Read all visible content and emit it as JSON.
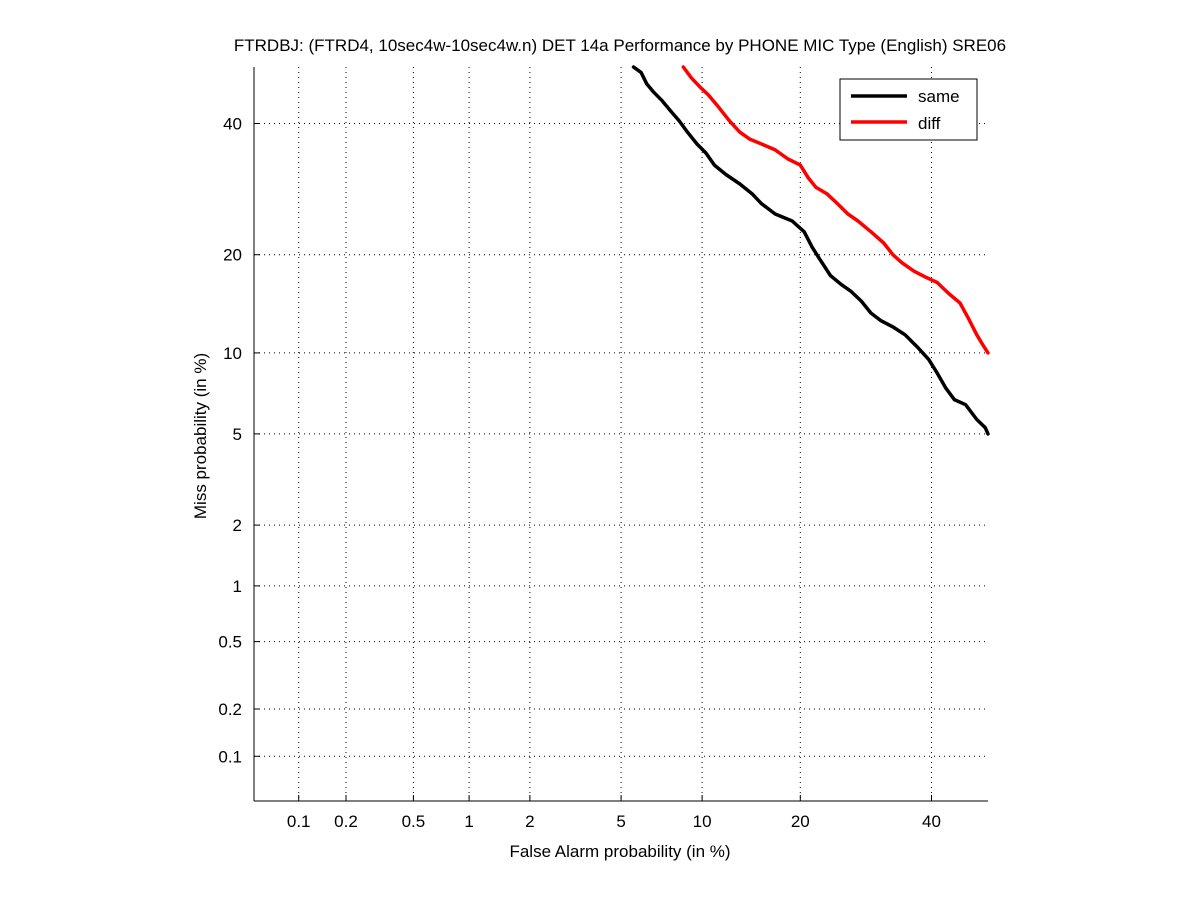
{
  "chart_data": {
    "type": "line",
    "title": "FTRDBJ: (FTRD4, 10sec4w-10sec4w.n) DET 14a Performance by PHONE MIC Type (English) SRE06",
    "xlabel": "False Alarm probability (in %)",
    "ylabel": "Miss probability (in %)",
    "x_scale": "normal-deviate (probit)",
    "y_scale": "normal-deviate (probit)",
    "xlim": [
      0.05,
      50
    ],
    "ylim": [
      0.05,
      50
    ],
    "x_ticks": [
      0.1,
      0.2,
      0.5,
      1,
      2,
      5,
      10,
      20,
      40
    ],
    "x_tick_labels": [
      "0.1",
      "0.2",
      "0.5",
      "1",
      "2",
      "5",
      "10",
      "20",
      "40"
    ],
    "y_ticks": [
      0.1,
      0.2,
      0.5,
      1,
      2,
      5,
      10,
      20,
      40
    ],
    "y_tick_labels": [
      "0.1",
      "0.2",
      "0.5",
      "1",
      "2",
      "5",
      "10",
      "20",
      "40"
    ],
    "grid": true,
    "legend_position": "top-right",
    "series": [
      {
        "name": "same",
        "color": "#000000",
        "points": [
          [
            5.6,
            50
          ],
          [
            6.0,
            49
          ],
          [
            6.3,
            47
          ],
          [
            6.7,
            45.5
          ],
          [
            7.2,
            44
          ],
          [
            7.8,
            42
          ],
          [
            8.3,
            40.5
          ],
          [
            8.9,
            38.5
          ],
          [
            9.6,
            36.5
          ],
          [
            10.3,
            35
          ],
          [
            11.0,
            33
          ],
          [
            12.0,
            31.5
          ],
          [
            13.3,
            30
          ],
          [
            14.5,
            28.5
          ],
          [
            15.5,
            27
          ],
          [
            17.0,
            25.5
          ],
          [
            19.0,
            24.5
          ],
          [
            20.5,
            23
          ],
          [
            21.5,
            21
          ],
          [
            22.5,
            19.5
          ],
          [
            24.0,
            17.5
          ],
          [
            25.5,
            16.5
          ],
          [
            27.0,
            15.7
          ],
          [
            28.5,
            14.7
          ],
          [
            30.0,
            13.5
          ],
          [
            31.5,
            12.8
          ],
          [
            33.5,
            12.2
          ],
          [
            35.5,
            11.5
          ],
          [
            37.5,
            10.5
          ],
          [
            39.5,
            9.5
          ],
          [
            41.0,
            8.5
          ],
          [
            42.5,
            7.5
          ],
          [
            44.0,
            6.8
          ],
          [
            46.0,
            6.5
          ],
          [
            48.0,
            5.7
          ],
          [
            49.5,
            5.3
          ],
          [
            50,
            5.0
          ]
        ]
      },
      {
        "name": "diff",
        "color": "#ff0000",
        "points": [
          [
            8.6,
            50
          ],
          [
            9.2,
            48
          ],
          [
            9.8,
            46.5
          ],
          [
            10.5,
            45
          ],
          [
            11.3,
            43
          ],
          [
            12.3,
            40.5
          ],
          [
            13.3,
            38.5
          ],
          [
            14.3,
            37.3
          ],
          [
            15.5,
            36.5
          ],
          [
            17.0,
            35.5
          ],
          [
            18.5,
            34
          ],
          [
            20.0,
            33
          ],
          [
            21.0,
            31
          ],
          [
            22.0,
            29.5
          ],
          [
            23.5,
            28.5
          ],
          [
            25.0,
            27
          ],
          [
            26.5,
            25.5
          ],
          [
            28.0,
            24.5
          ],
          [
            30.0,
            23
          ],
          [
            32.0,
            21.5
          ],
          [
            33.5,
            20
          ],
          [
            35.0,
            19
          ],
          [
            37.0,
            18
          ],
          [
            39.0,
            17.3
          ],
          [
            41.0,
            16.7
          ],
          [
            43.0,
            15.5
          ],
          [
            45.0,
            14.5
          ],
          [
            46.5,
            13
          ],
          [
            48.0,
            11.5
          ],
          [
            49.0,
            10.7
          ],
          [
            50,
            10.0
          ]
        ]
      }
    ]
  }
}
